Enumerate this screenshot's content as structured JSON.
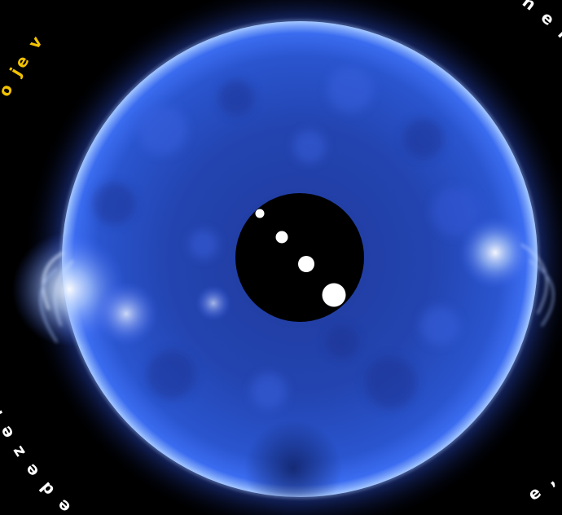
{
  "image": {
    "subject": "sun-eit-ultraviolet",
    "colors": {
      "background": "#000000",
      "sun_core": "#1e3aa8",
      "sun_mid": "#2a4fd0",
      "limb_glow": "#7fb2ff",
      "corona": "#5a8cff",
      "occulter": "#000000",
      "planet_dots": "#ffffff",
      "text_yellow": "#f2c200",
      "text_white": "#ffffff"
    }
  },
  "overlay_text": {
    "top_left": "o je v",
    "top_right": "n e n",
    "bottom_left": "n e d e z e l l e",
    "bottom_right": "e ,"
  },
  "planet_dots": [
    {
      "name": "dot-1",
      "size_rank": 1
    },
    {
      "name": "dot-2",
      "size_rank": 2
    },
    {
      "name": "dot-3",
      "size_rank": 3
    },
    {
      "name": "dot-4",
      "size_rank": 4
    }
  ]
}
